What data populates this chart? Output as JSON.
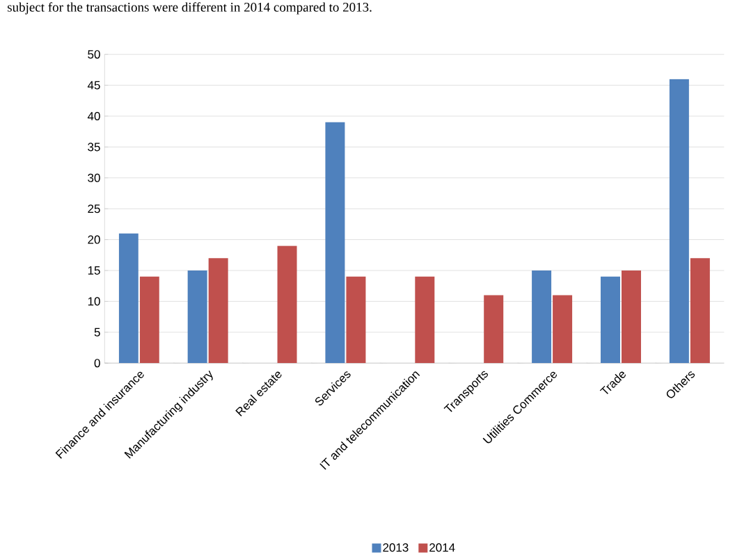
{
  "chart_data": {
    "type": "bar",
    "annotations": [
      "subject for the transactions were different in 2014 compared to 2013."
    ],
    "categories": [
      "Finance and insurance",
      "Manufacturing industry",
      "Real estate",
      "Services",
      "IT and telecommunication",
      "Transports",
      "Utilities Commerce",
      "Trade",
      "Others"
    ],
    "series": [
      {
        "name": "2013",
        "color": "#4f81bd",
        "values": [
          21,
          15,
          null,
          39,
          null,
          null,
          15,
          14,
          46
        ]
      },
      {
        "name": "2014",
        "color": "#c0504d",
        "values": [
          14,
          17,
          19,
          14,
          14,
          11,
          11,
          15,
          17
        ]
      }
    ],
    "ylim": [
      0,
      50
    ],
    "yticks": [
      0,
      5,
      10,
      15,
      20,
      25,
      30,
      35,
      40,
      45,
      50
    ],
    "grid": "y",
    "legend": "bottom"
  }
}
